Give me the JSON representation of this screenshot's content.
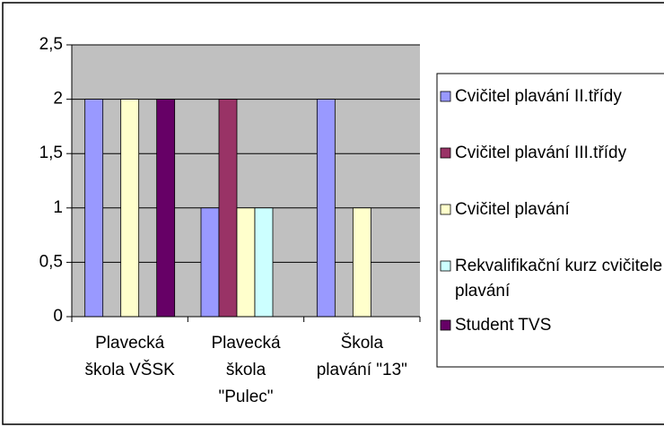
{
  "chart_data": {
    "type": "bar",
    "categories": [
      "Plavecká škola VŠSK",
      "Plavecká škola \"Pulec\"",
      "Škola plavání \"13\""
    ],
    "series": [
      {
        "name": "Cvičitel plavání II.třídy",
        "color": "#9999ff",
        "values": [
          2,
          1,
          2
        ]
      },
      {
        "name": "Cvičitel plavání III.třídy",
        "color": "#993366",
        "values": [
          0,
          2,
          0
        ]
      },
      {
        "name": "Cvičitel plavání",
        "color": "#ffffcc",
        "values": [
          2,
          1,
          1
        ]
      },
      {
        "name": "Rekvalifikační kurz cvičitele plavání",
        "color": "#ccffff",
        "values": [
          0,
          1,
          0
        ]
      },
      {
        "name": "Student TVS",
        "color": "#660066",
        "values": [
          2,
          0,
          0
        ]
      }
    ],
    "ylim": [
      0,
      2.5
    ],
    "yticks": [
      0,
      {
        "value": 0.5,
        "label": "0,5"
      },
      1,
      {
        "value": 1.5,
        "label": "1,5"
      },
      2,
      {
        "value": 2.5,
        "label": "2,5"
      }
    ],
    "grid": true,
    "legend": "right",
    "plot_background": "#c0c0c0"
  }
}
